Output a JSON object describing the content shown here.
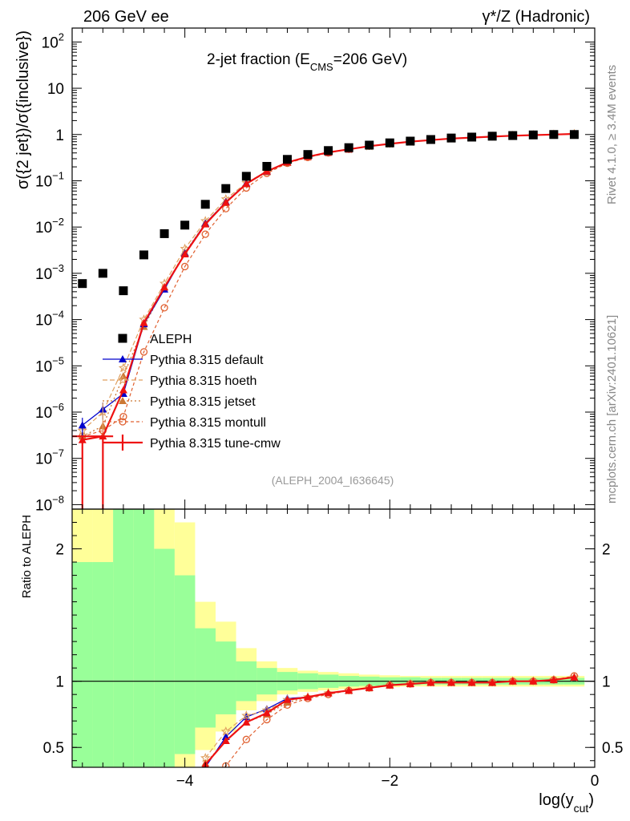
{
  "header": {
    "left": "206 GeV ee",
    "right": "γ*/Z (Hadronic)"
  },
  "side_labels": {
    "rivet": "Rivet 4.1.0, ≥ 3.4M events",
    "mcplots": "mcplots.cern.ch [arXiv:2401.10621]"
  },
  "analysis_id": "(ALEPH_2004_I636645)",
  "colors": {
    "data": "#000000",
    "default": "#0000cc",
    "hoeth": "#e0a060",
    "jetset": "#cc7733",
    "montull": "#e06030",
    "tunecmw": "#ee1111",
    "band_green": "#99ff99",
    "band_yellow": "#ffff99"
  },
  "chart_data": [
    {
      "type": "scatter",
      "title": "2-jet fraction (E",
      "title_sub": "CMS",
      "title_tail": "=206 GeV)",
      "ylabel": "σ({2 jet})/σ({inclusive})",
      "yscale": "log",
      "ylim": [
        8e-09,
        200
      ],
      "xlim": [
        -5.1,
        0
      ],
      "y_ticks": [
        {
          "v": 1e-08,
          "base": "10",
          "exp": "−8"
        },
        {
          "v": 1e-07,
          "base": "10",
          "exp": "−7"
        },
        {
          "v": 1e-06,
          "base": "10",
          "exp": "−6"
        },
        {
          "v": 1e-05,
          "base": "10",
          "exp": "−5"
        },
        {
          "v": 0.0001,
          "base": "10",
          "exp": "−4"
        },
        {
          "v": 0.001,
          "base": "10",
          "exp": "−3"
        },
        {
          "v": 0.01,
          "base": "10",
          "exp": "−2"
        },
        {
          "v": 0.1,
          "base": "10",
          "exp": "−1"
        },
        {
          "v": 1,
          "base": "1",
          "exp": ""
        },
        {
          "v": 10,
          "base": "10",
          "exp": ""
        },
        {
          "v": 100,
          "base": "10",
          "exp": "2"
        }
      ],
      "legend": [
        "ALEPH",
        "Pythia 8.315 default",
        "Pythia 8.315 hoeth",
        "Pythia 8.315 jetset",
        "Pythia 8.315 montull",
        "Pythia 8.315 tune-cmw"
      ],
      "x": [
        -5.0,
        -4.8,
        -4.6,
        -4.4,
        -4.2,
        -4.0,
        -3.8,
        -3.6,
        -3.4,
        -3.2,
        -3.0,
        -2.8,
        -2.6,
        -2.4,
        -2.2,
        -2.0,
        -1.8,
        -1.6,
        -1.4,
        -1.2,
        -1.0,
        -0.8,
        -0.6,
        -0.4,
        -0.2
      ],
      "series": [
        {
          "name": "ALEPH",
          "key": "data",
          "values": [
            0.0006,
            0.001,
            0.00042,
            0.0025,
            0.0072,
            0.011,
            0.031,
            0.068,
            0.125,
            0.205,
            0.29,
            0.37,
            0.45,
            0.52,
            0.59,
            0.66,
            0.72,
            0.78,
            0.84,
            0.88,
            0.92,
            0.95,
            0.98,
            1.0,
            1.0
          ]
        },
        {
          "name": "Pythia 8.315 default",
          "key": "default",
          "values": [
            5.2e-07,
            1.15e-06,
            2.5e-06,
            8e-05,
            0.00045,
            0.0027,
            0.012,
            0.035,
            0.088,
            0.16,
            0.25,
            0.33,
            0.41,
            0.48,
            0.56,
            0.63,
            0.7,
            0.76,
            0.82,
            0.86,
            0.9,
            0.94,
            0.97,
            1.0,
            1.03
          ]
        },
        {
          "name": "Pythia 8.315 hoeth",
          "key": "hoeth",
          "values": [
            4e-07,
            1e-06,
            9e-06,
            0.0001,
            0.0006,
            0.0034,
            0.0135,
            0.04,
            0.09,
            0.16,
            0.25,
            0.33,
            0.41,
            0.48,
            0.56,
            0.63,
            0.7,
            0.76,
            0.82,
            0.86,
            0.9,
            0.94,
            0.97,
            1.0,
            1.03
          ]
        },
        {
          "name": "Pythia 8.315 jetset",
          "key": "jetset",
          "values": [
            3e-07,
            5e-07,
            6e-06,
            7e-05,
            0.0005,
            0.0028,
            0.012,
            0.035,
            0.085,
            0.155,
            0.245,
            0.33,
            0.41,
            0.48,
            0.56,
            0.63,
            0.7,
            0.76,
            0.82,
            0.86,
            0.9,
            0.94,
            0.97,
            1.0,
            1.03
          ]
        },
        {
          "name": "Pythia 8.315 montull",
          "key": "montull",
          "values": [
            3e-07,
            4e-07,
            8e-07,
            2e-05,
            0.00018,
            0.0014,
            0.007,
            0.025,
            0.07,
            0.145,
            0.24,
            0.32,
            0.4,
            0.48,
            0.56,
            0.63,
            0.7,
            0.76,
            0.82,
            0.86,
            0.9,
            0.94,
            0.97,
            1.0,
            1.03
          ]
        },
        {
          "name": "Pythia 8.315 tune-cmw",
          "key": "tunecmw",
          "values": [
            2.5e-07,
            3e-07,
            3e-06,
            8.5e-05,
            0.0005,
            0.0026,
            0.0115,
            0.034,
            0.086,
            0.16,
            0.25,
            0.33,
            0.41,
            0.48,
            0.56,
            0.63,
            0.7,
            0.76,
            0.82,
            0.86,
            0.9,
            0.94,
            0.97,
            1.0,
            1.03
          ]
        }
      ]
    },
    {
      "type": "area",
      "ylabel": "Ratio to ALEPH",
      "ylim": [
        0.35,
        2.3
      ],
      "xlim": [
        -5.1,
        0
      ],
      "xlabel": "log(y",
      "xlabel_sub": "cut",
      "xlabel_tail": ")",
      "y_ticks": [
        {
          "v": 0.5,
          "label": "0.5"
        },
        {
          "v": 1,
          "label": "1"
        },
        {
          "v": 2,
          "label": "2"
        }
      ],
      "x_ticks": [
        {
          "v": -4,
          "label": "−4"
        },
        {
          "v": -2,
          "label": "−2"
        },
        {
          "v": 0,
          "label": "0"
        }
      ],
      "band_edges": [
        -5.1,
        -4.9,
        -4.7,
        -4.5,
        -4.3,
        -4.1,
        -3.9,
        -3.7,
        -3.5,
        -3.3,
        -3.1,
        -2.9,
        -2.7,
        -2.5,
        -2.3,
        -2.1,
        -1.9,
        -1.7,
        -1.5,
        -1.3,
        -1.1,
        -0.9,
        -0.7,
        -0.5,
        -0.3,
        -0.1
      ],
      "band_green": [
        [
          0.1,
          1.9
        ],
        [
          0.1,
          1.9
        ],
        [
          0.1,
          2.4
        ],
        [
          0.1,
          2.4
        ],
        [
          0.2,
          2.0
        ],
        [
          0.45,
          1.8
        ],
        [
          0.65,
          1.4
        ],
        [
          0.75,
          1.3
        ],
        [
          0.85,
          1.15
        ],
        [
          0.9,
          1.1
        ],
        [
          0.93,
          1.07
        ],
        [
          0.94,
          1.06
        ],
        [
          0.95,
          1.05
        ],
        [
          0.96,
          1.04
        ],
        [
          0.965,
          1.035
        ],
        [
          0.97,
          1.03
        ],
        [
          0.97,
          1.03
        ],
        [
          0.975,
          1.025
        ],
        [
          0.975,
          1.025
        ],
        [
          0.975,
          1.025
        ],
        [
          0.975,
          1.025
        ],
        [
          0.975,
          1.025
        ],
        [
          0.975,
          1.025
        ],
        [
          0.975,
          1.025
        ],
        [
          0.975,
          1.025
        ]
      ],
      "band_yellow": [
        [
          0.1,
          2.4
        ],
        [
          0.1,
          2.4
        ],
        [
          0.1,
          2.4
        ],
        [
          0.1,
          2.4
        ],
        [
          0.1,
          2.4
        ],
        [
          0.3,
          2.2
        ],
        [
          0.48,
          1.6
        ],
        [
          0.62,
          1.45
        ],
        [
          0.78,
          1.25
        ],
        [
          0.85,
          1.15
        ],
        [
          0.9,
          1.1
        ],
        [
          0.92,
          1.08
        ],
        [
          0.93,
          1.07
        ],
        [
          0.94,
          1.06
        ],
        [
          0.95,
          1.05
        ],
        [
          0.955,
          1.045
        ],
        [
          0.96,
          1.04
        ],
        [
          0.96,
          1.04
        ],
        [
          0.96,
          1.04
        ],
        [
          0.96,
          1.04
        ],
        [
          0.96,
          1.04
        ],
        [
          0.96,
          1.04
        ],
        [
          0.96,
          1.04
        ],
        [
          0.96,
          1.04
        ],
        [
          0.96,
          1.04
        ]
      ],
      "ratio_x": [
        -3.8,
        -3.6,
        -3.4,
        -3.2,
        -3.0,
        -2.8,
        -2.6,
        -2.4,
        -2.2,
        -2.0,
        -1.8,
        -1.6,
        -1.4,
        -1.2,
        -1.0,
        -0.8,
        -0.6,
        -0.4,
        -0.2
      ],
      "ratio_series": [
        {
          "key": "default",
          "values": [
            0.35,
            0.58,
            0.73,
            0.79,
            0.87,
            0.88,
            0.91,
            0.93,
            0.95,
            0.97,
            0.98,
            0.99,
            0.99,
            0.99,
            0.99,
            1.0,
            1.0,
            1.01,
            1.03
          ]
        },
        {
          "key": "hoeth",
          "values": [
            0.42,
            0.62,
            0.74,
            0.78,
            0.86,
            0.88,
            0.91,
            0.93,
            0.95,
            0.97,
            0.98,
            0.99,
            0.99,
            0.99,
            0.99,
            1.0,
            1.0,
            1.01,
            1.03
          ]
        },
        {
          "key": "jetset",
          "values": [
            0.38,
            0.55,
            0.69,
            0.75,
            0.84,
            0.88,
            0.91,
            0.93,
            0.95,
            0.97,
            0.98,
            0.99,
            0.99,
            0.99,
            0.99,
            1.0,
            1.0,
            1.01,
            1.03
          ]
        },
        {
          "key": "montull",
          "values": [
            0.2,
            0.36,
            0.56,
            0.71,
            0.82,
            0.87,
            0.9,
            0.93,
            0.95,
            0.97,
            0.98,
            0.99,
            0.99,
            0.99,
            0.99,
            1.0,
            1.0,
            1.01,
            1.04
          ]
        },
        {
          "key": "tunecmw",
          "values": [
            0.37,
            0.55,
            0.69,
            0.76,
            0.86,
            0.88,
            0.91,
            0.93,
            0.95,
            0.97,
            0.98,
            0.99,
            0.99,
            0.99,
            0.99,
            1.0,
            1.0,
            1.01,
            1.03
          ]
        }
      ]
    }
  ]
}
